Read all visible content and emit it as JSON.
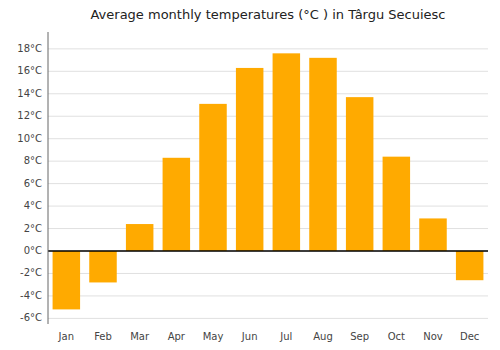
{
  "chart_data": {
    "type": "bar",
    "title": "Average monthly temperatures (°C ) in Târgu Secuiesc",
    "categories": [
      "Jan",
      "Feb",
      "Mar",
      "Apr",
      "May",
      "Jun",
      "Jul",
      "Aug",
      "Sep",
      "Oct",
      "Nov",
      "Dec"
    ],
    "values": [
      -5.2,
      -2.8,
      2.4,
      8.3,
      13.1,
      16.3,
      17.6,
      17.2,
      13.7,
      8.4,
      2.9,
      -2.6
    ],
    "color": "#FFAA00",
    "ylim": [
      -6.5,
      19.5
    ],
    "yticks": [
      {
        "value": -6,
        "label": "-6°C"
      },
      {
        "value": -4,
        "label": "-4°C"
      },
      {
        "value": -2,
        "label": "-2°C"
      },
      {
        "value": 0,
        "label": "0°C"
      },
      {
        "value": 2,
        "label": "2°C"
      },
      {
        "value": 4,
        "label": "4°C"
      },
      {
        "value": 6,
        "label": "6°C"
      },
      {
        "value": 8,
        "label": "8°C"
      },
      {
        "value": 10,
        "label": "10°C"
      },
      {
        "value": 12,
        "label": "12°C"
      },
      {
        "value": 14,
        "label": "14°C"
      },
      {
        "value": 16,
        "label": "16°C"
      },
      {
        "value": 18,
        "label": "18°C"
      }
    ],
    "grid": true
  }
}
